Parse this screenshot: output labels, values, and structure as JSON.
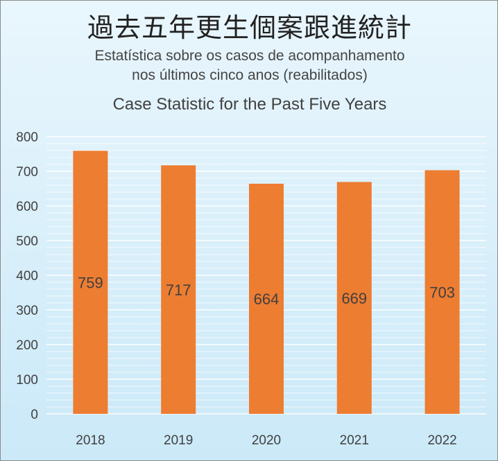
{
  "titles": {
    "zh": "過去五年更生個案跟進統計",
    "pt_line1": "Estatística sobre os casos de acompanhamento",
    "pt_line2": "nos últimos cinco anos (reabilitados)",
    "en": "Case Statistic for the Past Five Years"
  },
  "colors": {
    "bar": "#ed7d31",
    "grid": "#ffffff",
    "background_top": "#e9f6fd",
    "background_bottom": "#cbe9f8"
  },
  "chart_data": {
    "type": "bar",
    "categories": [
      "2018",
      "2019",
      "2020",
      "2021",
      "2022"
    ],
    "values": [
      759,
      717,
      664,
      669,
      703
    ],
    "data_labels": [
      "759",
      "717",
      "664",
      "669",
      "703"
    ],
    "ylim": [
      0,
      800
    ],
    "y_ticks": [
      0,
      100,
      200,
      300,
      400,
      500,
      600,
      700,
      800
    ],
    "grid": true,
    "legend": "none"
  }
}
